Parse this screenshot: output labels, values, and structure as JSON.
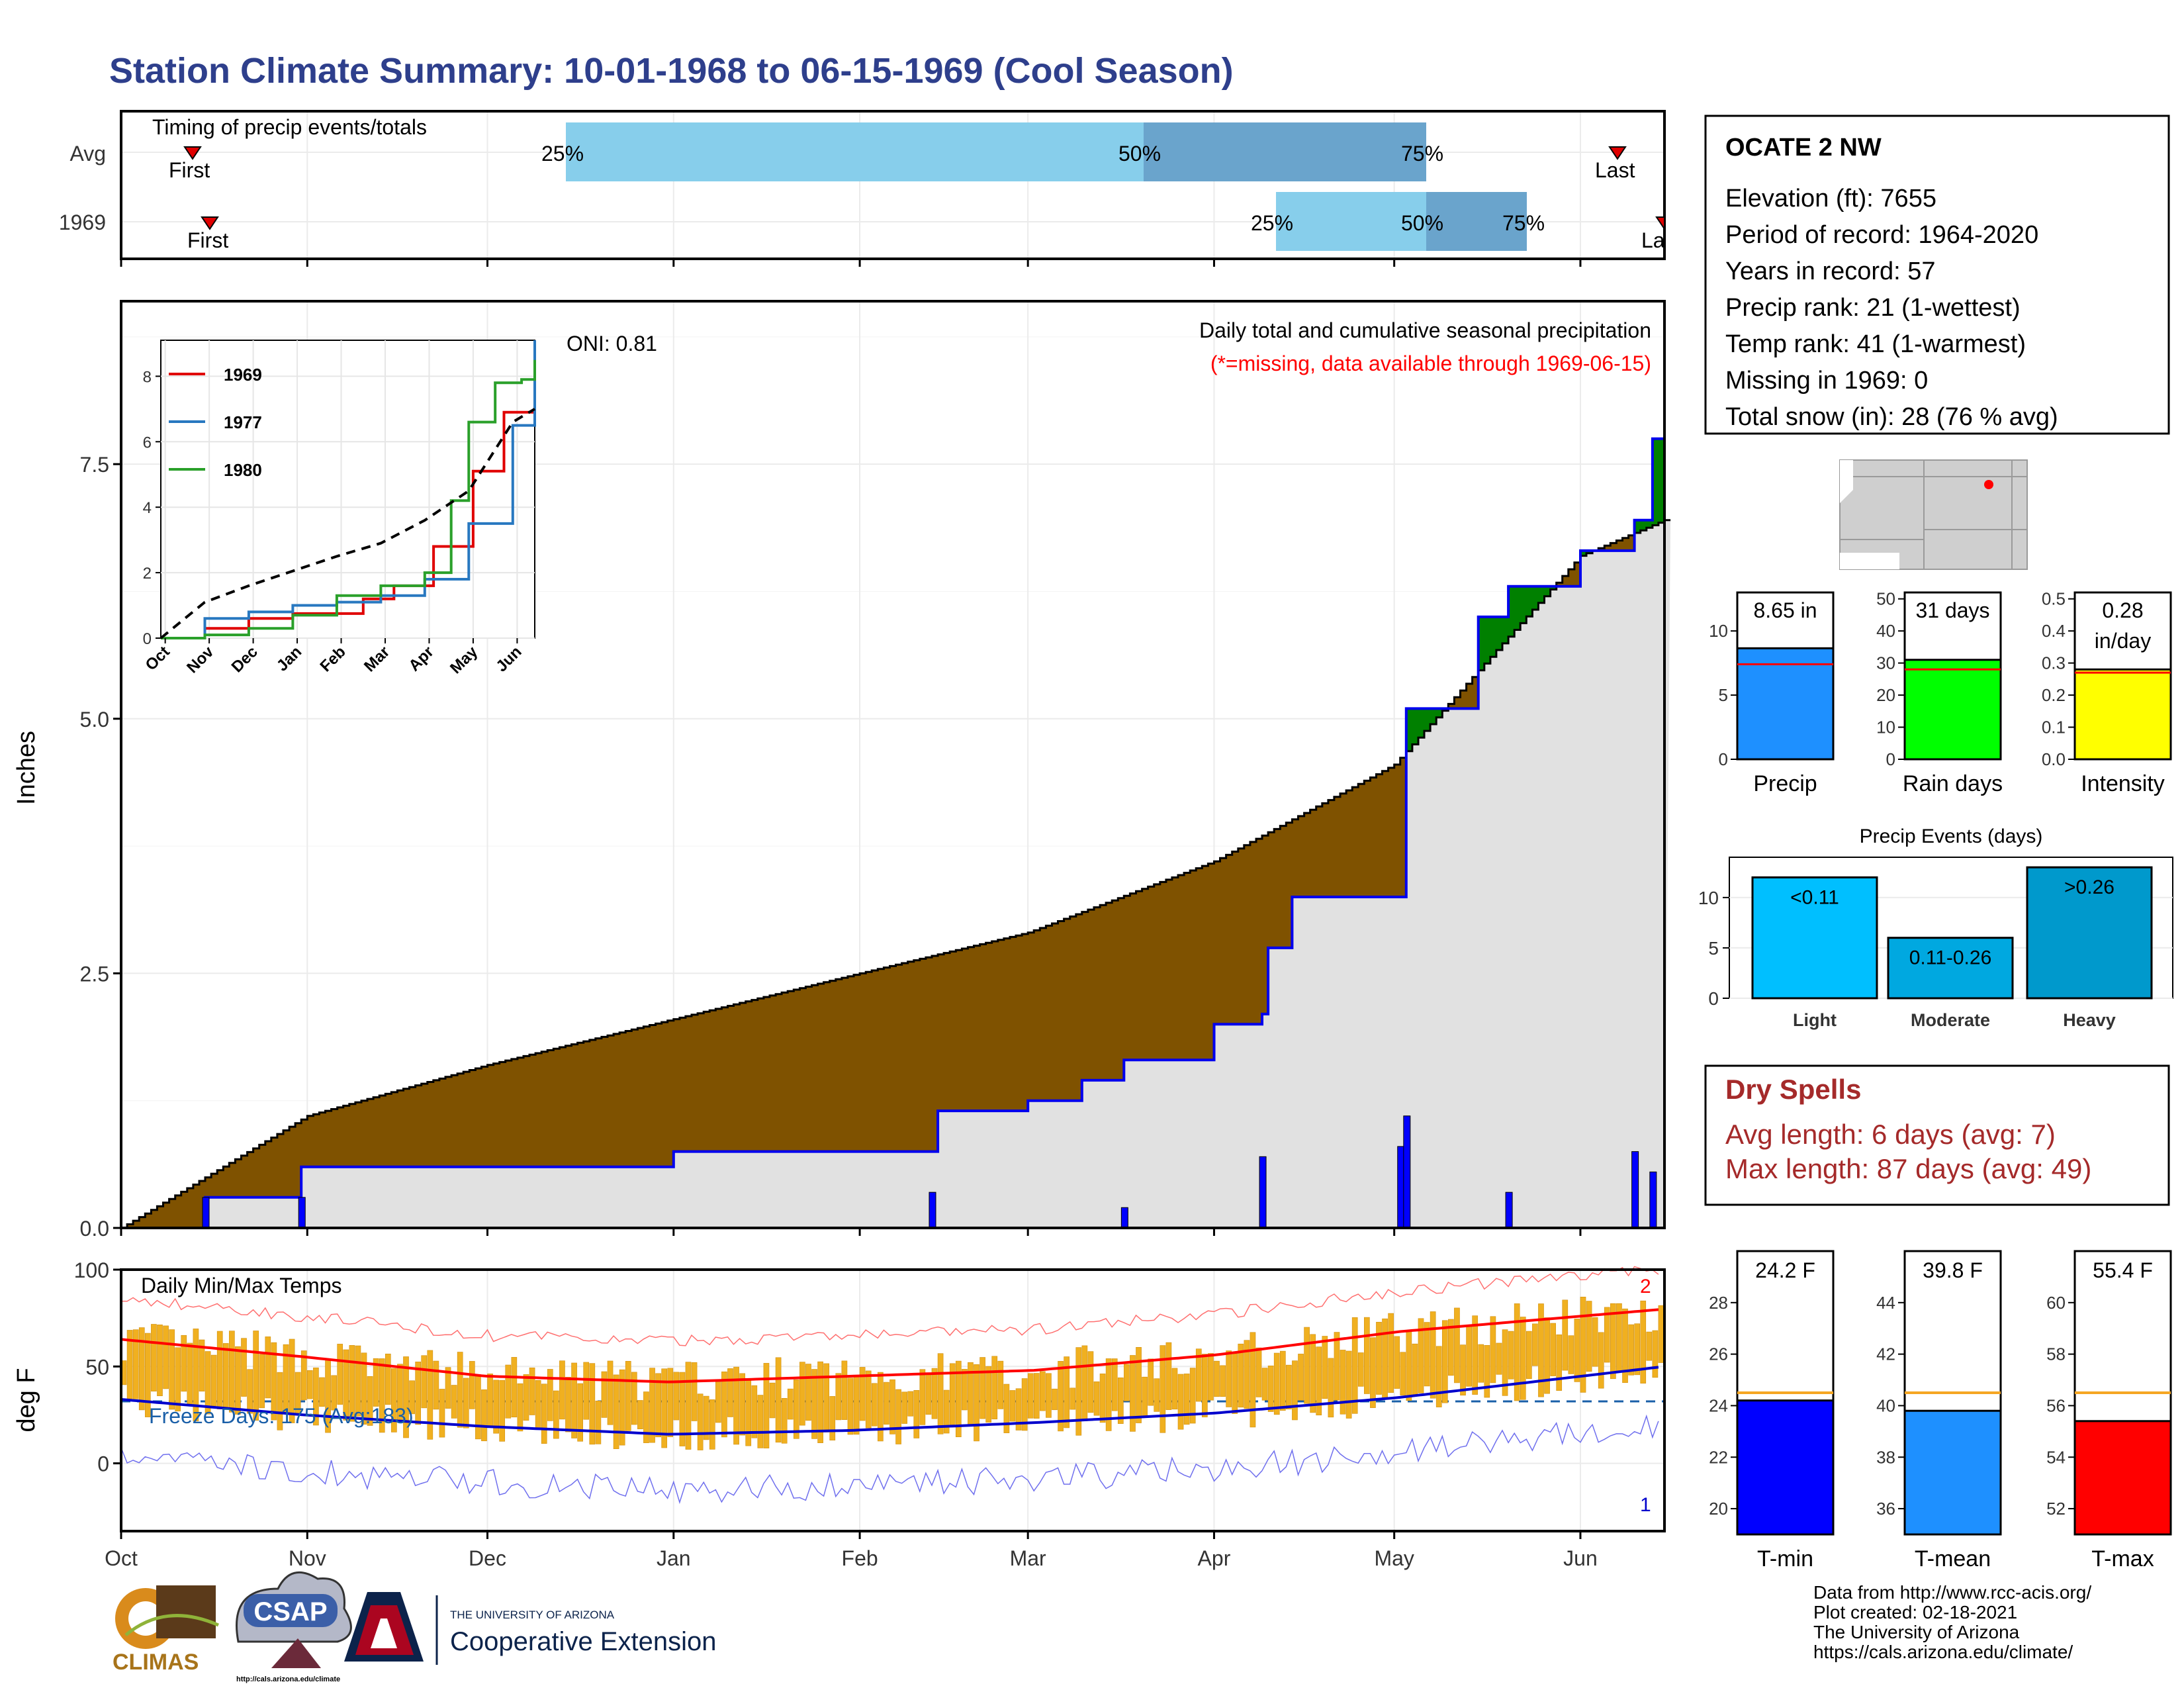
{
  "title": "Station Climate Summary: 10-01-1968 to 06-15-1969 (Cool Season)",
  "colors": {
    "title": "#2e3f8c",
    "brown": "#7f5200",
    "green": "#008000",
    "blue_line": "#0000ee",
    "gray_fill": "#e1e1e1",
    "light_blue": "#87ceeb",
    "steel_blue": "#6aa4cc",
    "orange": "#f5a623",
    "tmax_red": "#ff0000",
    "tmin_blue": "#0000cc",
    "dry_spell": "#a52a2a",
    "freeze": "#1a5fa8"
  },
  "timing_panel": {
    "label": "Timing of precip events/totals",
    "rows": [
      {
        "name": "Avg",
        "first": "First",
        "last": "Last",
        "p25": "25%",
        "p50": "50%",
        "p75": "75%"
      },
      {
        "name": "1969",
        "first": "First",
        "last": "La",
        "p25": "25%",
        "p50": "50%",
        "p75": "75%"
      }
    ]
  },
  "station_box": {
    "name": "OCATE 2 NW",
    "lines": [
      "Elevation (ft): 7655",
      "Period of record: 1964-2020",
      "Years in record: 57",
      "Precip rank: 21 (1-wettest)",
      "Temp rank: 41 (1-warmest)",
      "Missing in 1969: 0",
      "Total snow (in): 28 (76 % avg)"
    ]
  },
  "main_chart": {
    "ylabel": "Inches",
    "oni": "ONI: 0.81",
    "caption": "Daily total and cumulative seasonal precipitation",
    "missing_note": "(*=missing, data available through 1969-06-15)",
    "yticks": [
      "0.0",
      "2.5",
      "5.0",
      "7.5"
    ],
    "months": [
      "Oct",
      "Nov",
      "Dec",
      "Jan",
      "Feb",
      "Mar",
      "Apr",
      "May",
      "Jun"
    ]
  },
  "inset": {
    "legend": [
      "1969",
      "1977",
      "1980"
    ],
    "yticks": [
      "0",
      "2",
      "4",
      "6",
      "8"
    ],
    "months": [
      "Oct",
      "Nov",
      "Dec",
      "Jan",
      "Feb",
      "Mar",
      "Apr",
      "May",
      "Jun"
    ]
  },
  "summary_bars": [
    {
      "label": "Precip",
      "value_text": "8.65 in",
      "value": 8.65,
      "avg": 7.4,
      "ticks": [
        "0",
        "5",
        "10"
      ],
      "color": "#1e90ff"
    },
    {
      "label": "Rain days",
      "value_text": "31 days",
      "value": 31,
      "avg": 28,
      "ticks": [
        "0",
        "10",
        "20",
        "30",
        "40",
        "50"
      ],
      "color": "#00ff00"
    },
    {
      "label": "Intensity",
      "value_text": "0.28",
      "value_text2": "in/day",
      "value": 0.28,
      "avg": 0.27,
      "ticks": [
        "0.0",
        "0.1",
        "0.2",
        "0.3",
        "0.4",
        "0.5"
      ],
      "color": "#ffff00"
    }
  ],
  "precip_events": {
    "title": "Precip Events (days)",
    "ticks": [
      "0",
      "5",
      "10"
    ],
    "bars": [
      {
        "label": "Light",
        "text": "<0.11",
        "value": 12,
        "color": "#00bfff"
      },
      {
        "label": "Moderate",
        "text": "0.11-0.26",
        "value": 6,
        "color": "#00a8e0"
      },
      {
        "label": "Heavy",
        "text": ">0.26",
        "value": 13,
        "color": "#0099cc"
      }
    ]
  },
  "dry_spells": {
    "title": "Dry Spells",
    "avg": "Avg length: 6 days (avg: 7)",
    "max": "Max length: 87 days (avg: 49)"
  },
  "temp_chart": {
    "ylabel": "deg F",
    "label": "Daily Min/Max Temps",
    "freeze": "Freeze Days: 175 (Avg:183)",
    "yticks": [
      "0",
      "50",
      "100"
    ],
    "marker_top": "2",
    "marker_bottom": "1",
    "months": [
      "Oct",
      "Nov",
      "Dec",
      "Jan",
      "Feb",
      "Mar",
      "Apr",
      "May",
      "Jun"
    ]
  },
  "temp_bars": [
    {
      "label": "T-min",
      "value_text": "24.2 F",
      "value": 24.2,
      "avg": 24.5,
      "ymin": 19,
      "ymax": 30,
      "ticks": [
        "20",
        "22",
        "24",
        "26",
        "28"
      ],
      "color": "#0000ff"
    },
    {
      "label": "T-mean",
      "value_text": "39.8 F",
      "value": 39.8,
      "avg": 40.5,
      "ymin": 35,
      "ymax": 46,
      "ticks": [
        "36",
        "38",
        "40",
        "42",
        "44"
      ],
      "color": "#1e90ff"
    },
    {
      "label": "T-max",
      "value_text": "55.4 F",
      "value": 55.4,
      "avg": 56.5,
      "ymin": 51,
      "ymax": 62,
      "ticks": [
        "52",
        "54",
        "56",
        "58",
        "60"
      ],
      "color": "#ff0000"
    }
  ],
  "logos": {
    "climas": "CLIMAS",
    "csap": "CSAP",
    "csap_url": "http://cals.arizona.edu/climate",
    "ua_top": "THE UNIVERSITY OF ARIZONA",
    "ua_bottom": "Cooperative Extension"
  },
  "credits": [
    "Data from http://www.rcc-acis.org/",
    "Plot created: 02-18-2021",
    "The University of Arizona",
    "https://cals.arizona.edu/climate/"
  ],
  "chart_data": [
    {
      "type": "area",
      "title": "Daily total and cumulative seasonal precipitation",
      "ylabel": "Inches",
      "ylim": [
        0,
        9.1
      ],
      "x_unit": "date",
      "xlim": [
        "1968-10-01",
        "1969-06-15"
      ],
      "series": [
        {
          "name": "1969",
          "x": [
            "1968-10-01",
            "1968-10-15",
            "1968-10-31",
            "1969-01-01",
            "1969-02-13",
            "1969-02-14",
            "1969-03-01",
            "1969-03-10",
            "1969-03-17",
            "1969-04-01",
            "1969-04-09",
            "1969-04-10",
            "1969-04-14",
            "1969-05-02",
            "1969-05-03",
            "1969-05-15",
            "1969-05-20",
            "1969-06-01",
            "1969-06-10",
            "1969-06-13",
            "1969-06-15"
          ],
          "values": [
            0,
            0.3,
            0.6,
            0.75,
            0.75,
            1.15,
            1.25,
            1.45,
            1.65,
            2.0,
            2.1,
            2.75,
            3.25,
            3.25,
            5.1,
            6.0,
            6.3,
            6.65,
            6.95,
            7.75,
            8.65
          ]
        },
        {
          "name": "Average",
          "x": [
            "1968-10-01",
            "1968-11-01",
            "1968-12-01",
            "1969-01-01",
            "1969-02-01",
            "1969-03-01",
            "1969-04-01",
            "1969-05-01",
            "1969-06-01",
            "1969-06-15"
          ],
          "values": [
            0,
            1.1,
            1.6,
            2.05,
            2.5,
            2.9,
            3.6,
            4.55,
            6.6,
            6.95
          ]
        }
      ],
      "daily_x": [
        "1968-10-15",
        "1968-10-31",
        "1969-02-13",
        "1969-03-17",
        "1969-04-09",
        "1969-05-02",
        "1969-05-03",
        "1969-05-20",
        "1969-06-10",
        "1969-06-13"
      ],
      "daily_values": [
        0.3,
        0.3,
        0.35,
        0.2,
        0.7,
        0.8,
        1.1,
        0.35,
        0.75,
        0.55
      ]
    },
    {
      "type": "line",
      "title": "Cumulative precipitation comparison",
      "ylim": [
        0,
        9
      ],
      "x_unit": "month index from Oct",
      "series": [
        {
          "name": "1969",
          "x": [
            0,
            1,
            2,
            3,
            4,
            4.6,
            5.3,
            6.2,
            7.1,
            7.8,
            8.5
          ],
          "values": [
            0,
            0.3,
            0.6,
            0.75,
            0.75,
            1.2,
            1.6,
            2.8,
            5.1,
            6.9,
            8.65
          ]
        },
        {
          "name": "1977",
          "x": [
            0,
            1,
            2,
            3,
            4,
            5,
            6,
            7,
            8,
            8.5
          ],
          "values": [
            0,
            0.6,
            0.8,
            1.0,
            1.1,
            1.3,
            1.8,
            3.5,
            6.5,
            9.1
          ]
        },
        {
          "name": "1980",
          "x": [
            0,
            1,
            2,
            3,
            4,
            5,
            6,
            6.6,
            7,
            7.6,
            8.2,
            8.5
          ],
          "values": [
            0,
            0.1,
            0.3,
            0.7,
            1.3,
            1.6,
            2.0,
            4.2,
            6.6,
            7.8,
            7.9,
            8.5
          ]
        },
        {
          "x": [
            0,
            1,
            2,
            3,
            4,
            5,
            6,
            7,
            8,
            8.5
          ],
          "values": [
            0,
            1.1,
            1.6,
            2.05,
            2.5,
            2.9,
            3.6,
            4.5,
            6.6,
            7.0
          ]
        }
      ]
    },
    {
      "type": "bar",
      "title": "Daily Min/Max Temps",
      "ylabel": "deg F",
      "ylim": [
        -35,
        100
      ],
      "categories": [
        "Oct",
        "Nov",
        "Dec",
        "Jan",
        "Feb",
        "Mar",
        "Apr",
        "May",
        "Jun"
      ],
      "series": [
        {
          "values": [
            64,
            55,
            45,
            42,
            45,
            48,
            56,
            68,
            76
          ]
        },
        {
          "values": [
            33,
            25,
            19,
            15,
            17,
            21,
            26,
            34,
            45
          ]
        }
      ]
    }
  ]
}
